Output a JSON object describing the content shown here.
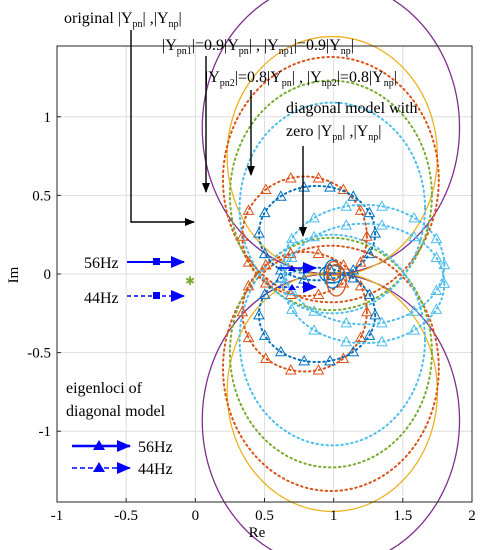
{
  "chart_data": {
    "type": "line",
    "title": "",
    "xlabel": "Re",
    "ylabel": "Im",
    "xlim": [
      -1,
      2
    ],
    "ylim": [
      -1.45,
      1.45
    ],
    "xticks": [
      -1,
      -0.5,
      0,
      0.5,
      1,
      1.5,
      2
    ],
    "xtick_labels": [
      "-1",
      "-0.5",
      "0",
      "0.5",
      "1",
      "1.5",
      "2"
    ],
    "yticks": [
      1,
      0.5,
      0,
      -0.5,
      -1
    ],
    "ytick_labels": [
      "1",
      "0.5",
      "0",
      "-0.5",
      "-1"
    ],
    "grid": true,
    "series": [
      {
        "color": "#7e2f8e",
        "style": "solid",
        "loops": [
          [
            0.98,
            0.93,
            0.93,
            0
          ],
          [
            0.98,
            -0.93,
            0.93,
            0
          ]
        ]
      },
      {
        "color": "#edb120",
        "style": "solid",
        "loops": [
          [
            0.99,
            0.75,
            0.76,
            0
          ],
          [
            0.99,
            -0.75,
            0.76,
            0
          ]
        ]
      },
      {
        "color": "#d95319",
        "style": "dotted",
        "loops": [
          [
            0.98,
            0.6,
            0.78,
            0
          ],
          [
            0.98,
            -0.6,
            0.78,
            0
          ]
        ]
      },
      {
        "color": "#77ac30",
        "style": "dotted",
        "loops": [
          [
            0.98,
            0.5,
            0.73,
            0
          ],
          [
            0.98,
            -0.5,
            0.73,
            0
          ]
        ]
      },
      {
        "color": "#4dbeee",
        "style": "dotted",
        "loops": [
          [
            0.99,
            0.42,
            0.67,
            0
          ],
          [
            0.99,
            -0.42,
            0.67,
            0
          ]
        ]
      },
      {
        "color": "#d95319",
        "style": "dotted-marker",
        "loops": [
          [
            0.79,
            0.24,
            0.45,
            0.38
          ],
          [
            0.79,
            -0.24,
            0.45,
            0.38
          ]
        ]
      },
      {
        "color": "#0072bd",
        "style": "dotted-marker",
        "loops": [
          [
            0.88,
            0.26,
            0.42,
            0.3
          ],
          [
            0.88,
            -0.26,
            0.42,
            0.3
          ]
        ]
      },
      {
        "color": "#4dbeee",
        "style": "dotted-marker",
        "loops": [
          [
            1.22,
            0.06,
            0.58,
            0.38
          ],
          [
            1.22,
            -0.06,
            0.58,
            0.38
          ]
        ]
      },
      {
        "color": "#0072bd",
        "style": "solid",
        "loops": [
          [
            0.99,
            0,
            0.06,
            0.09
          ],
          [
            0.99,
            0,
            0.09,
            0.055
          ]
        ]
      },
      {
        "color": "#d95319",
        "style": "solid",
        "loops": [
          [
            1.02,
            -0.04,
            0.07,
            0.1
          ],
          [
            1.0,
            0.02,
            0.05,
            0.06
          ]
        ]
      }
    ],
    "legend": {
      "eigenloci_label": [
        "eigenloci of",
        "diagonal model"
      ],
      "freq_56": "56Hz",
      "freq_44": "44Hz"
    },
    "annotations": {
      "original": {
        "text": "original |Y",
        "sub1": "pn",
        "mid": "| ,|Y",
        "sub2": "np",
        "end": "|"
      },
      "scale09": {
        "text": "|Y",
        "sub1": "pn1",
        "mid1": "|=0.9|Y",
        "sub2": "pn",
        "mid2": "| , |Y",
        "sub3": "np1",
        "mid3": "|=0.9|Y",
        "sub4": "np",
        "end": "|"
      },
      "scale08": {
        "text": "|Y",
        "sub1": "pn2",
        "mid1": "|=0.8|Y",
        "sub2": "pn",
        "mid2": "| , |Y",
        "sub3": "np2",
        "mid3": "|=0.8|Y",
        "sub4": "np",
        "end": "|"
      },
      "diagonal": {
        "line1": "diagonal model with",
        "line2a": "zero |Y",
        "sub1": "pn",
        "line2b": "| ,|Y",
        "sub2": "np",
        "line2c": "|"
      },
      "hz56": "56Hz",
      "hz44": "44Hz"
    },
    "colors": {
      "arrow": "#0000ff",
      "axes": "#262626",
      "grid": "#dedede"
    }
  }
}
